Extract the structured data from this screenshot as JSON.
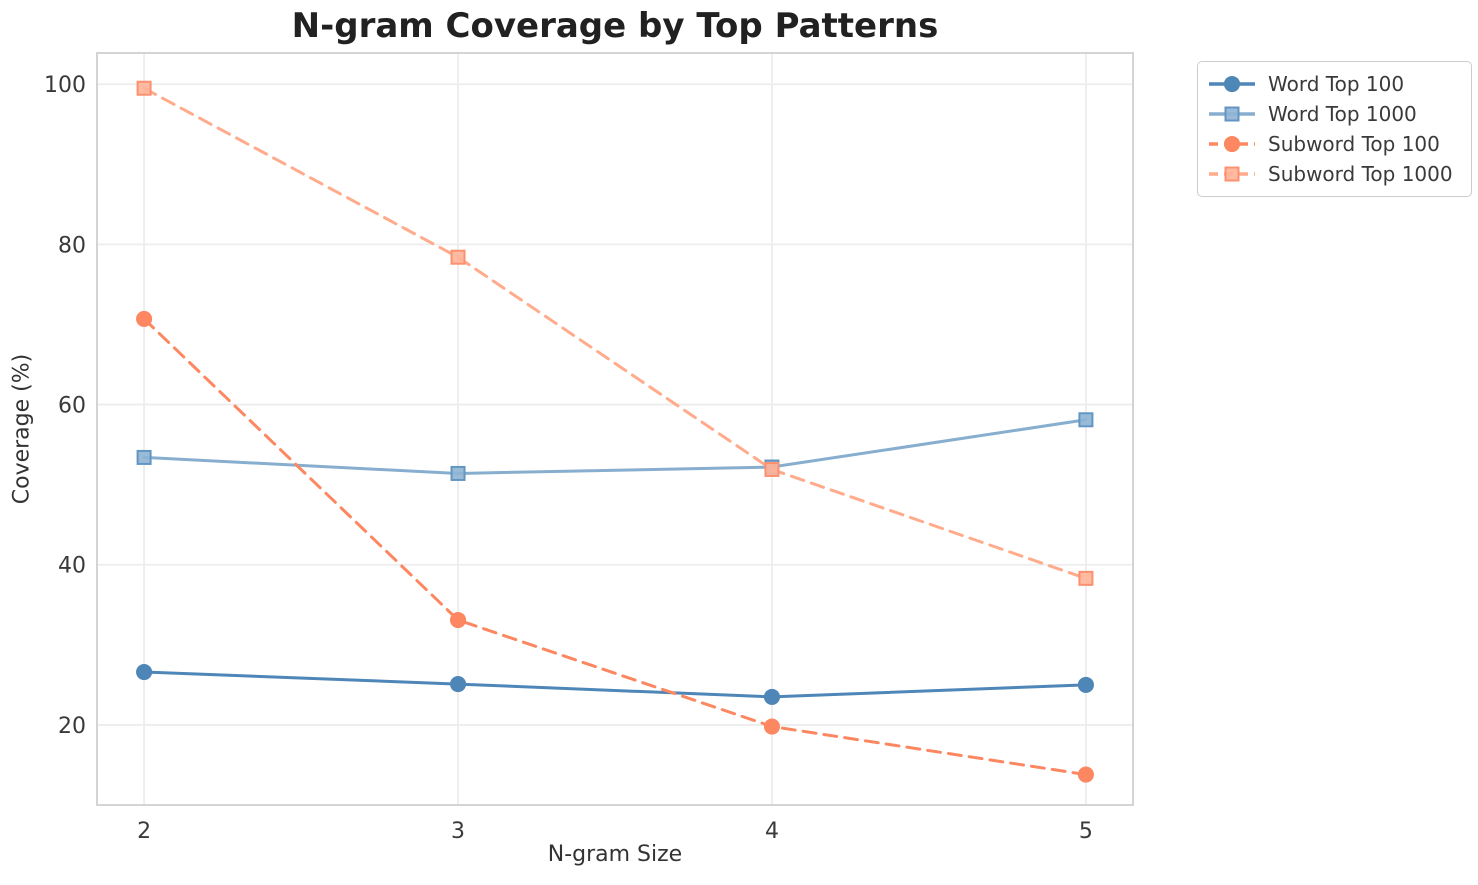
{
  "chart_data": {
    "type": "line",
    "title": "N-gram Coverage by Top Patterns",
    "xlabel": "N-gram Size",
    "ylabel": "Coverage (%)",
    "x": [
      2,
      3,
      4,
      5
    ],
    "xticks": [
      "2",
      "3",
      "4",
      "5"
    ],
    "yticks": [
      20,
      40,
      60,
      80,
      100
    ],
    "xlim": [
      1.85,
      5.15
    ],
    "ylim": [
      10.0,
      103.9
    ],
    "grid": true,
    "legend_position": "outside-top-right",
    "series": [
      {
        "name": "Word Top 100",
        "values": [
          26.6,
          25.1,
          23.5,
          25.0
        ],
        "color": "#4E86B8",
        "dash": "solid",
        "marker": "circle",
        "marker_fill": "#4E86B8",
        "marker_edge": "#4E86B8"
      },
      {
        "name": "Word Top 1000",
        "values": [
          53.4,
          51.4,
          52.2,
          58.1
        ],
        "color": "#87AECE",
        "dash": "solid",
        "marker": "square",
        "marker_fill": "#8FB4D4",
        "marker_edge": "#6296C2"
      },
      {
        "name": "Subword Top 100",
        "values": [
          70.7,
          33.1,
          19.8,
          13.8
        ],
        "color": "#FC8761",
        "dash": "dashed",
        "marker": "circle",
        "marker_fill": "#FC8761",
        "marker_edge": "#FC8761"
      },
      {
        "name": "Subword Top 1000",
        "values": [
          99.5,
          78.4,
          51.9,
          38.3
        ],
        "color": "#FFAB8C",
        "dash": "dashed",
        "marker": "square",
        "marker_fill": "#FFB298",
        "marker_edge": "#FB9170"
      }
    ],
    "colors": {
      "grid": "#EDEDED",
      "spine": "#CFCFCF",
      "tick_text": "#3A3A3A",
      "axis_text": "#333333",
      "title_text": "#212121",
      "legend_border": "#CCCCCC",
      "background": "#FFFFFF"
    }
  }
}
